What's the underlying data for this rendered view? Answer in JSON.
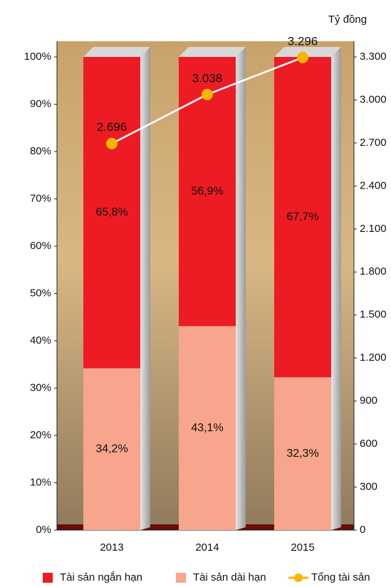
{
  "chart_data": {
    "type": "bar",
    "stacked": true,
    "y2_label": "Tỷ đồng",
    "categories": [
      "2013",
      "2014",
      "2015"
    ],
    "series": [
      {
        "name": "Tài sản ngắn hạn",
        "color": "#ed1c24",
        "values": [
          65.8,
          56.9,
          67.7
        ],
        "value_labels": [
          "65,8%",
          "56,9%",
          "67,7%"
        ]
      },
      {
        "name": "Tài sản dài hạn",
        "color": "#f7a58c",
        "values": [
          34.2,
          43.1,
          32.3
        ],
        "value_labels": [
          "34,2%",
          "43,1%",
          "32,3%"
        ]
      },
      {
        "name": "Tổng tài sản",
        "type": "line",
        "axis": "y2",
        "color": "#f7b500",
        "values": [
          2696,
          3038,
          3296
        ],
        "value_labels": [
          "2.696",
          "3.038",
          "3.296"
        ]
      }
    ],
    "ylim": [
      0,
      100
    ],
    "yticks": [
      {
        "value": 0,
        "label": "0%"
      },
      {
        "value": 10,
        "label": "10%"
      },
      {
        "value": 20,
        "label": "20%"
      },
      {
        "value": 30,
        "label": "30%"
      },
      {
        "value": 40,
        "label": "40%"
      },
      {
        "value": 50,
        "label": "50%"
      },
      {
        "value": 60,
        "label": "60%"
      },
      {
        "value": 70,
        "label": "70%"
      },
      {
        "value": 80,
        "label": "80%"
      },
      {
        "value": 90,
        "label": "90%"
      },
      {
        "value": 100,
        "label": "100%"
      }
    ],
    "y2lim": [
      0,
      3300
    ],
    "y2ticks": [
      0,
      300,
      600,
      900,
      {
        "value": 1200,
        "label": "1.200"
      },
      {
        "value": 1500,
        "label": "1.500"
      },
      {
        "value": 1800,
        "label": "1.800"
      },
      {
        "value": 2100,
        "label": "2.100"
      },
      {
        "value": 2400,
        "label": "2.400"
      },
      {
        "value": 2700,
        "label": "2.700"
      },
      {
        "value": 3000,
        "label": "3.000"
      },
      {
        "value": 3300,
        "label": "3.300"
      }
    ]
  }
}
